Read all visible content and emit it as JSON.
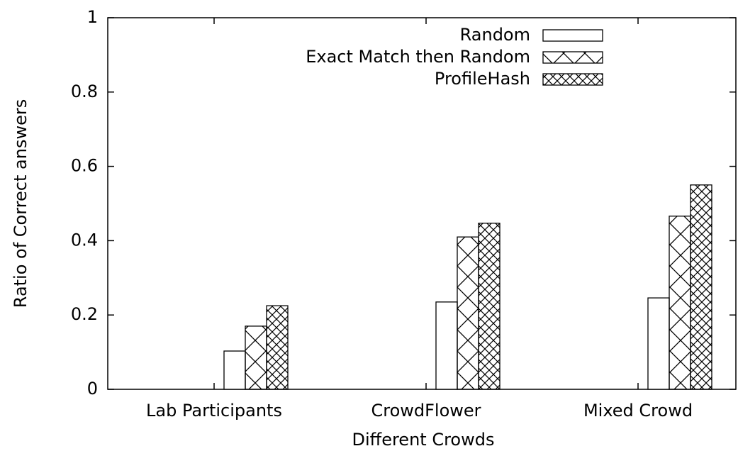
{
  "chart_data": {
    "type": "bar",
    "xlabel": "Different Crowds",
    "ylabel": "Ratio of Correct answers",
    "categories": [
      "Lab Participants",
      "CrowdFlower",
      "Mixed Crowd"
    ],
    "series": [
      {
        "name": "Random",
        "color": "#000000",
        "pattern": "none",
        "values": [
          0.103,
          0.235,
          0.246
        ]
      },
      {
        "name": "Exact Match then Random",
        "color": "#000000",
        "pattern": "wide-crosshatch",
        "values": [
          0.17,
          0.41,
          0.466
        ]
      },
      {
        "name": "ProfileHash",
        "color": "#000000",
        "pattern": "dense-crosshatch",
        "values": [
          0.225,
          0.447,
          0.55
        ]
      }
    ],
    "ylim": [
      0,
      1
    ],
    "yticks": [
      0,
      0.2,
      0.4,
      0.6,
      0.8,
      1
    ],
    "legend": "top-right"
  }
}
